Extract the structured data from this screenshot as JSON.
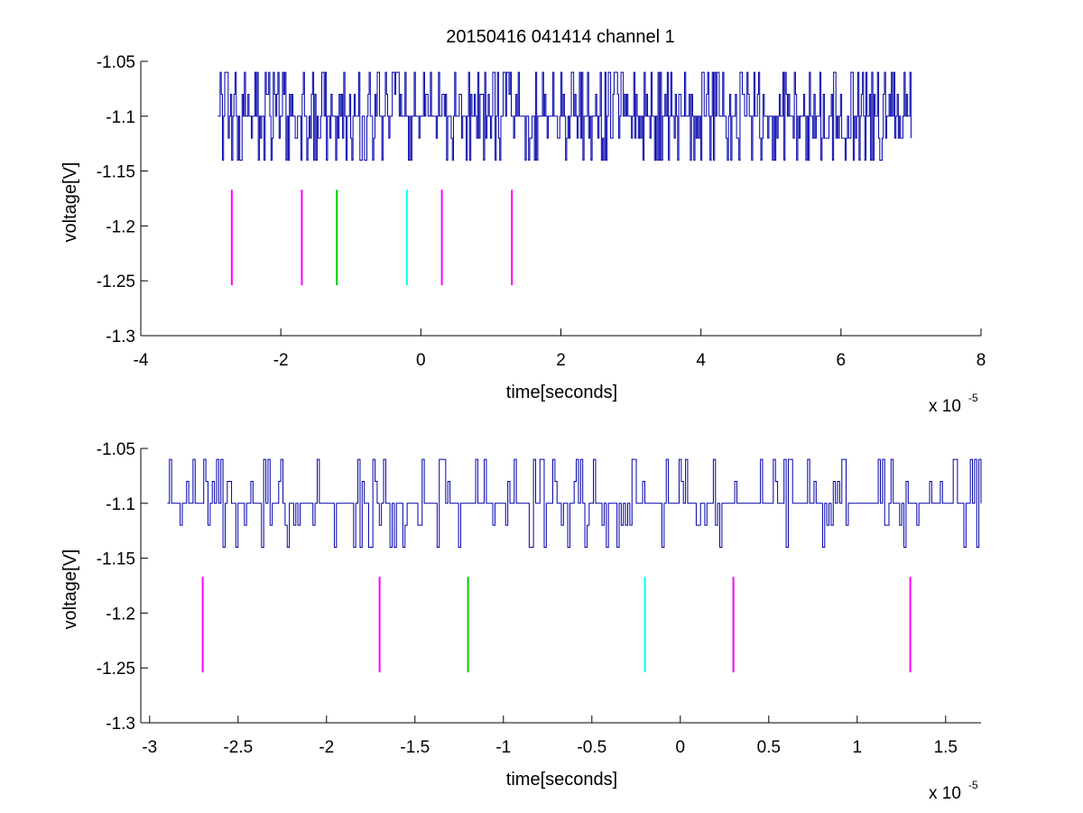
{
  "title": "20150416 041414 channel 1",
  "chart_data": [
    {
      "type": "line",
      "xlabel": "time[seconds]",
      "ylabel": "voltage[V]",
      "x_multiplier_label": "x 10",
      "x_multiplier_exp": "-5",
      "xlim": [
        -4,
        8
      ],
      "ylim": [
        -1.3,
        -1.05
      ],
      "xticks": [
        -4,
        -2,
        0,
        2,
        4,
        6,
        8
      ],
      "xtick_labels": [
        "-4",
        "-2",
        "0",
        "2",
        "4",
        "6",
        "8"
      ],
      "yticks": [
        -1.05,
        -1.1,
        -1.15,
        -1.2,
        -1.25,
        -1.3
      ],
      "ytick_labels": [
        "-1.05",
        "-1.1",
        "-1.15",
        "-1.2",
        "-1.25",
        "-1.3"
      ],
      "grid": false,
      "series": [
        {
          "color": "#0000aa",
          "x_range": [
            -2.9,
            7.0
          ],
          "levels": [
            -1.06,
            -1.08,
            -1.1,
            -1.12,
            -1.14
          ],
          "baseline": -1.1
        }
      ],
      "markers": [
        {
          "x": -2.7,
          "y0": -1.254,
          "y1": -1.167,
          "color": "#ff00ff"
        },
        {
          "x": -1.7,
          "y0": -1.254,
          "y1": -1.167,
          "color": "#ff00ff"
        },
        {
          "x": -1.2,
          "y0": -1.254,
          "y1": -1.167,
          "color": "#00cc00"
        },
        {
          "x": -0.2,
          "y0": -1.254,
          "y1": -1.167,
          "color": "#00ffff"
        },
        {
          "x": 0.3,
          "y0": -1.254,
          "y1": -1.167,
          "color": "#ff00ff"
        },
        {
          "x": 1.3,
          "y0": -1.254,
          "y1": -1.167,
          "color": "#ff00ff"
        }
      ]
    },
    {
      "type": "line",
      "xlabel": "time[seconds]",
      "ylabel": "voltage[V]",
      "x_multiplier_label": "x 10",
      "x_multiplier_exp": "-5",
      "xlim": [
        -3.05,
        1.7
      ],
      "ylim": [
        -1.3,
        -1.05
      ],
      "xticks": [
        -3,
        -2.5,
        -2,
        -1.5,
        -1,
        -0.5,
        0,
        0.5,
        1,
        1.5
      ],
      "xtick_labels": [
        "-3",
        "-2.5",
        "-2",
        "-1.5",
        "-1",
        "-0.5",
        "0",
        "0.5",
        "1",
        "1.5"
      ],
      "yticks": [
        -1.05,
        -1.1,
        -1.15,
        -1.2,
        -1.25,
        -1.3
      ],
      "ytick_labels": [
        "-1.05",
        "-1.1",
        "-1.15",
        "-1.2",
        "-1.25",
        "-1.3"
      ],
      "grid": false,
      "series": [
        {
          "color": "#0000aa",
          "x_range": [
            -2.9,
            1.7
          ],
          "levels": [
            -1.06,
            -1.08,
            -1.1,
            -1.12,
            -1.14
          ],
          "baseline": -1.1
        }
      ],
      "markers": [
        {
          "x": -2.7,
          "y0": -1.254,
          "y1": -1.167,
          "color": "#ff00ff"
        },
        {
          "x": -1.7,
          "y0": -1.254,
          "y1": -1.167,
          "color": "#ff00ff"
        },
        {
          "x": -1.2,
          "y0": -1.254,
          "y1": -1.167,
          "color": "#00cc00"
        },
        {
          "x": -0.2,
          "y0": -1.254,
          "y1": -1.167,
          "color": "#00ffff"
        },
        {
          "x": 0.3,
          "y0": -1.254,
          "y1": -1.167,
          "color": "#ff00ff"
        },
        {
          "x": 1.3,
          "y0": -1.254,
          "y1": -1.167,
          "color": "#ff00ff"
        }
      ]
    }
  ]
}
